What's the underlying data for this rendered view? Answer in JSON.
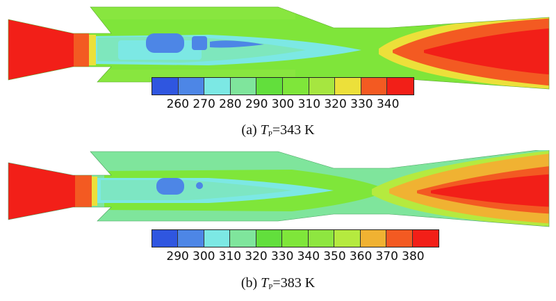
{
  "panels": [
    {
      "id": "a",
      "caption_prefix": "(a) ",
      "symbol": "T",
      "subscript": "P",
      "caption_value": "=343 K",
      "legend_ticks": [
        "260",
        "270",
        "280",
        "290",
        "300",
        "310",
        "320",
        "330",
        "340"
      ],
      "legend_colors": [
        "#2f56e0",
        "#4d86e6",
        "#7ce8e4",
        "#7fe59c",
        "#62df3c",
        "#7fe63a",
        "#a6e640",
        "#ece03a",
        "#f35a22",
        "#f21f18"
      ]
    },
    {
      "id": "b",
      "caption_prefix": "(b) ",
      "symbol": "T",
      "subscript": "P",
      "caption_value": "=383 K",
      "legend_ticks": [
        "290",
        "300",
        "310",
        "320",
        "330",
        "340",
        "350",
        "360",
        "370",
        "380"
      ],
      "legend_colors": [
        "#2f56e0",
        "#4d86e6",
        "#7ce8e4",
        "#7fe59c",
        "#62df3c",
        "#7fe63a",
        "#8ee640",
        "#b5ea3f",
        "#f0b232",
        "#f35a22",
        "#f21f18"
      ]
    }
  ]
}
